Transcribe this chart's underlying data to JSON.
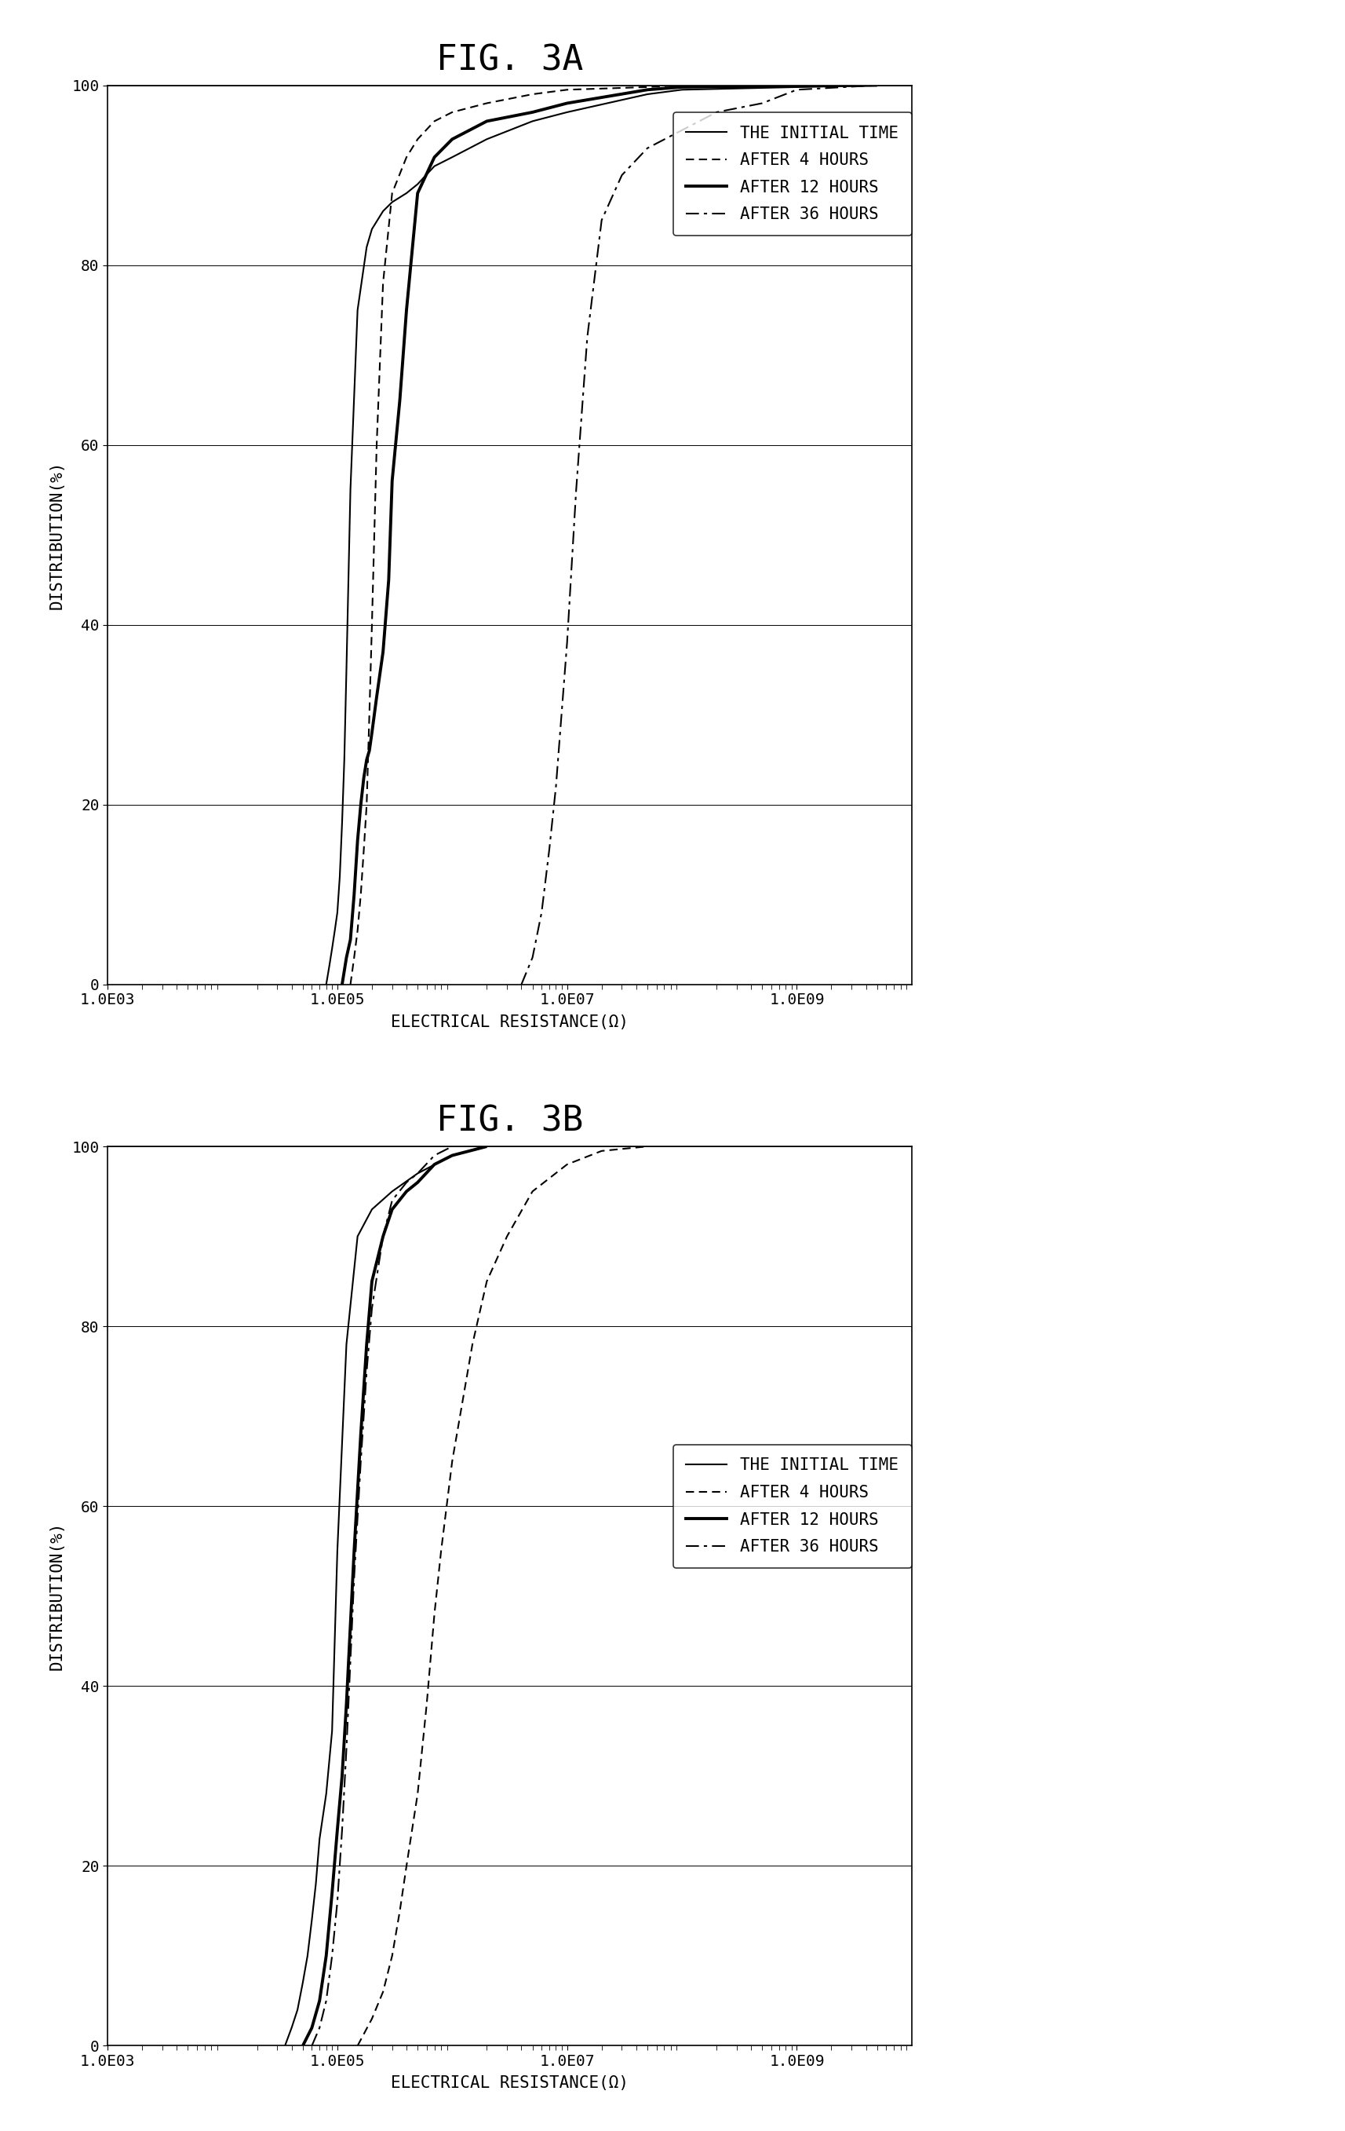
{
  "fig3a_title": "FIG. 3A",
  "fig3b_title": "FIG. 3B",
  "xlabel": "ELECTRICAL RESISTANCE(Ω)",
  "ylabel": "DISTRIBUTION(%)",
  "legend_labels": [
    "THE INITIAL TIME",
    "AFTER 4 HOURS",
    "AFTER 12 HOURS",
    "AFTER 36 HOURS"
  ],
  "xtick_labels": [
    "1.0E03",
    "1.0E05",
    "1.0E07",
    "1.0E09"
  ],
  "xtick_positions": [
    1000,
    100000,
    10000000,
    1000000000
  ],
  "yticks": [
    0,
    20,
    40,
    60,
    80,
    100
  ],
  "ymin": 0,
  "ymax": 100,
  "background_color": "#ffffff",
  "title_fontsize": 32,
  "axis_label_fontsize": 15,
  "tick_fontsize": 14,
  "legend_fontsize": 15,
  "fig3a_curves": {
    "initial": {
      "x": [
        80000.0,
        85000.0,
        90000.0,
        95000.0,
        100000.0,
        105000.0,
        110000.0,
        115000.0,
        120000.0,
        130000.0,
        150000.0,
        180000.0,
        200000.0,
        250000.0,
        300000.0,
        400000.0,
        500000.0,
        700000.0,
        1000000.0,
        2000000.0,
        5000000.0,
        10000000.0,
        50000000.0,
        100000000.0,
        5000000000.0
      ],
      "y": [
        0,
        2,
        4,
        6,
        8,
        12,
        18,
        25,
        35,
        55,
        75,
        82,
        84,
        86,
        87,
        88,
        89,
        91,
        92,
        94,
        96,
        97,
        99,
        99.5,
        100
      ]
    },
    "after4h": {
      "x": [
        130000.0,
        140000.0,
        150000.0,
        160000.0,
        170000.0,
        180000.0,
        190000.0,
        200000.0,
        220000.0,
        250000.0,
        300000.0,
        400000.0,
        500000.0,
        700000.0,
        1000000.0,
        2000000.0,
        5000000.0,
        10000000.0,
        50000000.0,
        100000000.0,
        5000000000.0
      ],
      "y": [
        0,
        3,
        6,
        10,
        15,
        20,
        30,
        40,
        60,
        78,
        88,
        92,
        94,
        96,
        97,
        98,
        99,
        99.5,
        99.8,
        100,
        100
      ]
    },
    "after12h": {
      "x": [
        110000.0,
        120000.0,
        130000.0,
        140000.0,
        150000.0,
        160000.0,
        170000.0,
        180000.0,
        190000.0,
        200000.0,
        220000.0,
        250000.0,
        280000.0,
        300000.0,
        350000.0,
        400000.0,
        500000.0,
        700000.0,
        1000000.0,
        2000000.0,
        5000000.0,
        10000000.0,
        50000000.0,
        100000000.0,
        5000000000.0
      ],
      "y": [
        0,
        3,
        5,
        10,
        16,
        20,
        23,
        25,
        26,
        28,
        32,
        37,
        45,
        56,
        65,
        75,
        88,
        92,
        94,
        96,
        97,
        98,
        99.5,
        99.8,
        100
      ]
    },
    "after36h": {
      "x": [
        4000000.0,
        5000000.0,
        6000000.0,
        7000000.0,
        8000000.0,
        10000000.0,
        12000000.0,
        15000000.0,
        20000000.0,
        30000000.0,
        50000000.0,
        100000000.0,
        200000000.0,
        500000000.0,
        1000000000.0,
        5000000000.0
      ],
      "y": [
        0,
        3,
        8,
        15,
        22,
        38,
        55,
        72,
        85,
        90,
        93,
        95,
        97,
        98,
        99.5,
        100
      ]
    }
  },
  "fig3b_curves": {
    "initial": {
      "x": [
        35000.0,
        40000.0,
        45000.0,
        50000.0,
        55000.0,
        60000.0,
        65000.0,
        70000.0,
        80000.0,
        90000.0,
        100000.0,
        120000.0,
        150000.0,
        200000.0,
        300000.0,
        500000.0,
        1000000.0,
        2000000.0
      ],
      "y": [
        0,
        2,
        4,
        7,
        10,
        14,
        18,
        23,
        28,
        35,
        55,
        78,
        90,
        93,
        95,
        97,
        99,
        100
      ]
    },
    "after4h": {
      "x": [
        150000.0,
        200000.0,
        250000.0,
        300000.0,
        350000.0,
        400000.0,
        500000.0,
        600000.0,
        700000.0,
        800000.0,
        1000000.0,
        1500000.0,
        2000000.0,
        3000000.0,
        5000000.0,
        10000000.0,
        20000000.0,
        50000000.0
      ],
      "y": [
        0,
        3,
        6,
        10,
        15,
        20,
        28,
        38,
        48,
        55,
        65,
        78,
        85,
        90,
        95,
        98,
        99.5,
        100
      ]
    },
    "after12h": {
      "x": [
        50000.0,
        60000.0,
        70000.0,
        80000.0,
        90000.0,
        100000.0,
        110000.0,
        120000.0,
        140000.0,
        160000.0,
        180000.0,
        200000.0,
        250000.0,
        300000.0,
        400000.0,
        500000.0,
        700000.0,
        1000000.0,
        2000000.0
      ],
      "y": [
        0,
        2,
        5,
        10,
        17,
        24,
        30,
        38,
        55,
        68,
        78,
        85,
        90,
        93,
        95,
        96,
        98,
        99,
        100
      ]
    },
    "after36h": {
      "x": [
        60000.0,
        70000.0,
        80000.0,
        90000.0,
        100000.0,
        110000.0,
        120000.0,
        140000.0,
        160000.0,
        180000.0,
        200000.0,
        250000.0,
        300000.0,
        400000.0,
        500000.0,
        700000.0,
        1000000.0
      ],
      "y": [
        0,
        2,
        5,
        10,
        16,
        24,
        33,
        52,
        65,
        75,
        82,
        90,
        94,
        96,
        97,
        99,
        100
      ]
    }
  }
}
